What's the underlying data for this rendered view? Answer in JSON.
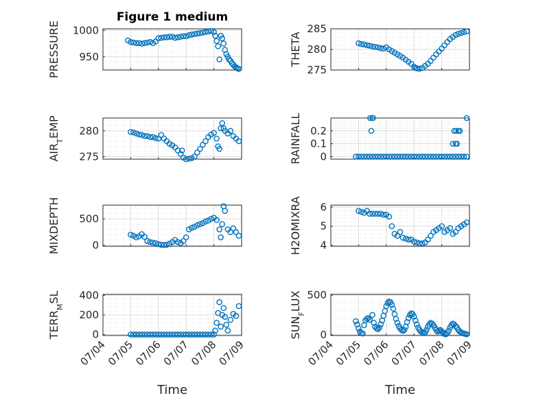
{
  "figure": {
    "title": "Figure 1 medium"
  },
  "style": {
    "marker_color": "#0072BD",
    "grid_major": "#dcdcdc",
    "grid_minor": "#e6e6e6",
    "axis_color": "#262626"
  },
  "chart_data": [
    {
      "type": "scatter",
      "ylabel": "PRESSURE",
      "x_range": [
        "07/04",
        "07/09"
      ],
      "ylim": [
        925,
        1003
      ],
      "yticks": [
        "950",
        "1000"
      ],
      "xticks": [
        "07/04",
        "07/05",
        "07/06",
        "07/07",
        "07/08",
        "07/09"
      ],
      "show_xticklabels": false,
      "x_day": [
        0.9,
        1.0,
        1.1,
        1.2,
        1.3,
        1.4,
        1.5,
        1.6,
        1.7,
        1.8,
        1.9,
        2.0,
        2.1,
        2.2,
        2.3,
        2.4,
        2.5,
        2.6,
        2.7,
        2.8,
        2.9,
        3.0,
        3.1,
        3.2,
        3.3,
        3.4,
        3.5,
        3.6,
        3.7,
        3.8,
        3.9,
        4.0,
        4.05,
        4.1,
        4.15,
        4.2,
        4.25,
        4.3,
        4.35,
        4.4,
        4.45,
        4.5,
        4.55,
        4.6,
        4.65,
        4.7,
        4.75,
        4.8,
        4.85,
        4.9
      ],
      "y": [
        981,
        978,
        977,
        976,
        976,
        975,
        976,
        977,
        978,
        976,
        979,
        985,
        986,
        987,
        987,
        988,
        988,
        986,
        987,
        988,
        989,
        989,
        991,
        992,
        993,
        994,
        995,
        996,
        997,
        998,
        999,
        997,
        990,
        980,
        970,
        945,
        990,
        985,
        975,
        963,
        955,
        950,
        945,
        942,
        938,
        935,
        932,
        930,
        928,
        927
      ]
    },
    {
      "type": "scatter",
      "ylabel": "THETA",
      "x_range": [
        "07/04",
        "07/09"
      ],
      "ylim": [
        275,
        285
      ],
      "yticks": [
        "275",
        "280",
        "285"
      ],
      "xticks": [
        "07/04",
        "07/05",
        "07/06",
        "07/07",
        "07/08",
        "07/09"
      ],
      "show_xticklabels": false,
      "x_day": [
        1.0,
        1.1,
        1.2,
        1.3,
        1.4,
        1.5,
        1.6,
        1.7,
        1.8,
        1.9,
        2.0,
        2.1,
        2.2,
        2.3,
        2.4,
        2.5,
        2.6,
        2.7,
        2.8,
        2.9,
        3.0,
        3.05,
        3.1,
        3.2,
        3.3,
        3.4,
        3.5,
        3.6,
        3.7,
        3.8,
        3.9,
        4.0,
        4.1,
        4.2,
        4.3,
        4.4,
        4.5,
        4.6,
        4.7,
        4.8,
        4.9
      ],
      "y": [
        281.5,
        281.3,
        281.2,
        281.0,
        280.9,
        280.7,
        280.6,
        280.5,
        280.3,
        280.2,
        280.5,
        280.0,
        279.6,
        279.2,
        278.8,
        278.4,
        278.0,
        277.5,
        277.0,
        276.5,
        275.8,
        275.5,
        275.4,
        275.3,
        275.5,
        276.0,
        276.5,
        277.2,
        278.0,
        278.8,
        279.5,
        280.2,
        281.0,
        281.8,
        282.5,
        283.0,
        283.5,
        283.8,
        284.0,
        284.2,
        284.4
      ]
    },
    {
      "type": "scatter",
      "ylabel": "AIR_TEMP",
      "ylabel_main": "AIR",
      "ylabel_sub": "T",
      "ylabel_rest": "EMP",
      "x_range": [
        "07/04",
        "07/09"
      ],
      "ylim": [
        274.5,
        282.5
      ],
      "yticks": [
        "275",
        "280"
      ],
      "xticks": [
        "07/04",
        "07/05",
        "07/06",
        "07/07",
        "07/08",
        "07/09"
      ],
      "show_xticklabels": false,
      "x_day": [
        1.0,
        1.1,
        1.2,
        1.3,
        1.4,
        1.5,
        1.6,
        1.7,
        1.8,
        1.9,
        2.0,
        2.1,
        2.2,
        2.3,
        2.4,
        2.5,
        2.6,
        2.7,
        2.8,
        2.85,
        2.9,
        3.0,
        3.1,
        3.2,
        3.3,
        3.4,
        3.5,
        3.6,
        3.7,
        3.8,
        3.9,
        4.0,
        4.1,
        4.15,
        4.2,
        4.25,
        4.3,
        4.35,
        4.4,
        4.5,
        4.6,
        4.7,
        4.8,
        4.9
      ],
      "y": [
        279.8,
        279.7,
        279.5,
        279.3,
        279.2,
        279.0,
        279.0,
        278.8,
        278.8,
        278.6,
        278.5,
        279.2,
        278.5,
        278.0,
        277.5,
        277.2,
        276.8,
        276.2,
        275.5,
        276.2,
        274.8,
        274.5,
        274.6,
        274.7,
        275.0,
        275.8,
        276.5,
        277.3,
        278.0,
        278.8,
        279.3,
        279.6,
        278.5,
        277.0,
        276.5,
        280.5,
        281.5,
        280.5,
        280.0,
        279.5,
        280.0,
        279.0,
        278.5,
        278.0
      ]
    },
    {
      "type": "scatter",
      "ylabel": "RAINFALL",
      "x_range": [
        "07/04",
        "07/09"
      ],
      "ylim": [
        -0.02,
        0.3
      ],
      "yticks": [
        "0",
        "0.1",
        "0.2"
      ],
      "xticks": [
        "07/04",
        "07/05",
        "07/06",
        "07/07",
        "07/08",
        "07/09"
      ],
      "show_xticklabels": false,
      "x_day": [
        0.9,
        1.0,
        1.1,
        1.2,
        1.3,
        1.4,
        1.5,
        1.6,
        1.7,
        1.8,
        1.9,
        2.0,
        2.1,
        2.2,
        2.3,
        2.4,
        2.5,
        2.6,
        2.7,
        2.8,
        2.9,
        3.0,
        3.1,
        3.2,
        3.3,
        3.4,
        3.5,
        3.6,
        3.7,
        3.8,
        3.9,
        4.0,
        4.1,
        4.2,
        4.3,
        4.4,
        4.5,
        4.6,
        4.7,
        4.8,
        4.9,
        1.42,
        1.46,
        1.5,
        1.52,
        4.4,
        4.45,
        4.5,
        4.52,
        4.55,
        4.6,
        4.65,
        4.9
      ],
      "y": [
        0,
        0,
        0,
        0,
        0,
        0,
        0,
        0,
        0,
        0,
        0,
        0,
        0,
        0,
        0,
        0,
        0,
        0,
        0,
        0,
        0,
        0,
        0,
        0,
        0,
        0,
        0,
        0,
        0,
        0,
        0,
        0,
        0,
        0,
        0,
        0,
        0,
        0,
        0,
        0,
        0,
        0.3,
        0.2,
        0.3,
        0.3,
        0.1,
        0.2,
        0.1,
        0.2,
        0.1,
        0.2,
        0.2,
        0.3
      ]
    },
    {
      "type": "scatter",
      "ylabel": "MIXDEPTH",
      "x_range": [
        "07/04",
        "07/09"
      ],
      "ylim": [
        -20,
        760
      ],
      "yticks": [
        "0",
        "500"
      ],
      "xticks": [
        "07/04",
        "07/05",
        "07/06",
        "07/07",
        "07/08",
        "07/09"
      ],
      "show_xticklabels": false,
      "x_day": [
        1.0,
        1.1,
        1.2,
        1.3,
        1.4,
        1.5,
        1.6,
        1.7,
        1.8,
        1.9,
        2.0,
        2.1,
        2.2,
        2.3,
        2.4,
        2.5,
        2.6,
        2.7,
        2.8,
        2.9,
        3.0,
        3.1,
        3.2,
        3.3,
        3.4,
        3.5,
        3.6,
        3.7,
        3.8,
        3.9,
        4.0,
        4.1,
        4.2,
        4.25,
        4.3,
        4.35,
        4.4,
        4.5,
        4.6,
        4.7,
        4.8,
        4.9
      ],
      "y": [
        200,
        180,
        150,
        170,
        210,
        160,
        80,
        60,
        50,
        40,
        20,
        10,
        5,
        10,
        30,
        60,
        100,
        60,
        40,
        80,
        150,
        300,
        330,
        350,
        380,
        400,
        420,
        450,
        470,
        500,
        520,
        480,
        300,
        150,
        400,
        740,
        650,
        300,
        250,
        320,
        250,
        180
      ]
    },
    {
      "type": "scatter",
      "ylabel": "H2OMIXRA",
      "x_range": [
        "07/04",
        "07/09"
      ],
      "ylim": [
        3.95,
        6.1
      ],
      "yticks": [
        "4",
        "5",
        "6"
      ],
      "xticks": [
        "07/04",
        "07/05",
        "07/06",
        "07/07",
        "07/08",
        "07/09"
      ],
      "show_xticklabels": false,
      "x_day": [
        1.0,
        1.1,
        1.2,
        1.3,
        1.4,
        1.5,
        1.6,
        1.7,
        1.8,
        1.9,
        2.0,
        2.1,
        2.2,
        2.3,
        2.4,
        2.5,
        2.6,
        2.7,
        2.8,
        2.9,
        3.0,
        3.1,
        3.2,
        3.3,
        3.4,
        3.5,
        3.6,
        3.7,
        3.8,
        3.9,
        4.0,
        4.1,
        4.2,
        4.3,
        4.4,
        4.5,
        4.6,
        4.7,
        4.8,
        4.9
      ],
      "y": [
        5.8,
        5.75,
        5.7,
        5.8,
        5.65,
        5.65,
        5.65,
        5.65,
        5.65,
        5.6,
        5.6,
        5.5,
        5.0,
        4.6,
        4.5,
        4.7,
        4.4,
        4.35,
        4.3,
        4.3,
        4.2,
        4.15,
        4.1,
        4.1,
        4.15,
        4.3,
        4.5,
        4.7,
        4.8,
        4.9,
        5.0,
        4.7,
        4.8,
        4.9,
        4.6,
        4.7,
        4.9,
        5.0,
        5.1,
        5.2
      ]
    },
    {
      "type": "scatter",
      "ylabel": "TERR_MSL",
      "ylabel_main": "TERR",
      "ylabel_sub": "M",
      "ylabel_rest": "SL",
      "x_range": [
        "07/04",
        "07/09"
      ],
      "ylim": [
        -10,
        410
      ],
      "yticks": [
        "0",
        "200",
        "400"
      ],
      "xticks": [
        "07/04",
        "07/05",
        "07/06",
        "07/07",
        "07/08",
        "07/09"
      ],
      "show_xticklabels": true,
      "xlabel": "Time",
      "x_day": [
        1.0,
        1.1,
        1.2,
        1.3,
        1.4,
        1.5,
        1.6,
        1.7,
        1.8,
        1.9,
        2.0,
        2.1,
        2.2,
        2.3,
        2.4,
        2.5,
        2.6,
        2.7,
        2.8,
        2.9,
        3.0,
        3.1,
        3.2,
        3.3,
        3.4,
        3.5,
        3.6,
        3.7,
        3.8,
        3.9,
        4.0,
        4.05,
        4.1,
        4.15,
        4.2,
        4.25,
        4.3,
        4.35,
        4.4,
        4.45,
        4.5,
        4.6,
        4.7,
        4.8,
        4.9
      ],
      "y": [
        0,
        0,
        0,
        0,
        0,
        0,
        0,
        0,
        0,
        0,
        0,
        0,
        0,
        0,
        0,
        0,
        0,
        0,
        0,
        0,
        0,
        0,
        0,
        0,
        0,
        0,
        0,
        0,
        0,
        0,
        0,
        40,
        120,
        220,
        330,
        80,
        200,
        270,
        180,
        100,
        40,
        150,
        210,
        190,
        290
      ]
    },
    {
      "type": "scatter",
      "ylabel": "SUN_FLUX",
      "ylabel_main": "SUN",
      "ylabel_sub": "F",
      "ylabel_rest": "LUX",
      "x_range": [
        "07/04",
        "07/09"
      ],
      "ylim": [
        -10,
        510
      ],
      "yticks": [
        "0",
        "500"
      ],
      "xticks": [
        "07/04",
        "07/05",
        "07/06",
        "07/07",
        "07/08",
        "07/09"
      ],
      "show_xticklabels": true,
      "xlabel": "Time",
      "x_day": [
        0.9,
        0.95,
        1.0,
        1.05,
        1.1,
        1.15,
        1.2,
        1.25,
        1.3,
        1.35,
        1.4,
        1.5,
        1.55,
        1.6,
        1.65,
        1.7,
        1.75,
        1.8,
        1.85,
        1.9,
        1.95,
        2.0,
        2.05,
        2.1,
        2.15,
        2.2,
        2.25,
        2.3,
        2.35,
        2.4,
        2.45,
        2.5,
        2.55,
        2.6,
        2.65,
        2.7,
        2.75,
        2.8,
        2.85,
        2.9,
        2.95,
        3.0,
        3.05,
        3.1,
        3.15,
        3.2,
        3.25,
        3.3,
        3.35,
        3.4,
        3.45,
        3.5,
        3.55,
        3.6,
        3.65,
        3.7,
        3.75,
        3.8,
        3.85,
        3.9,
        3.95,
        4.0,
        4.05,
        4.1,
        4.15,
        4.2,
        4.25,
        4.3,
        4.35,
        4.4,
        4.45,
        4.5,
        4.55,
        4.6,
        4.65,
        4.7,
        4.75,
        4.8,
        4.85,
        4.9
      ],
      "y": [
        170,
        130,
        80,
        40,
        20,
        15,
        120,
        180,
        200,
        210,
        190,
        250,
        150,
        100,
        80,
        70,
        90,
        130,
        180,
        240,
        300,
        360,
        400,
        420,
        410,
        380,
        330,
        260,
        200,
        150,
        110,
        80,
        60,
        50,
        60,
        100,
        160,
        210,
        250,
        270,
        260,
        230,
        180,
        130,
        90,
        60,
        40,
        30,
        20,
        30,
        60,
        100,
        130,
        150,
        140,
        120,
        90,
        60,
        40,
        50,
        60,
        40,
        30,
        10,
        5,
        20,
        50,
        90,
        120,
        140,
        130,
        110,
        90,
        60,
        40,
        30,
        20,
        15,
        10,
        5
      ]
    }
  ]
}
